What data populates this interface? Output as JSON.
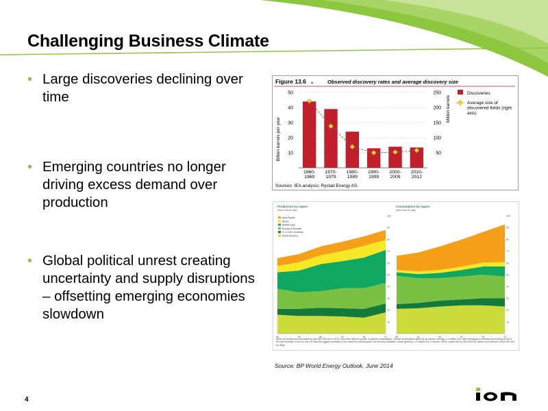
{
  "slide": {
    "title": "Challenging Business Climate",
    "page_number": "4",
    "bullets": [
      "Large discoveries declining over time",
      "Emerging countries no longer driving excess demand over production",
      "Global political unrest creating uncertainty and supply disruptions – offsetting emerging economies slowdown"
    ],
    "source_note": "Source: BP World Energy Outlook, June 2014",
    "logo_text": "ion"
  },
  "colors": {
    "accent_green": "#8dc63f",
    "bar_red": "#c0202b",
    "diamond_yellow": "#f5d018",
    "asia_pacific": "#f6a01a",
    "africa": "#f7e826",
    "middle_east": "#10a860",
    "europe_eurasia": "#7ac143",
    "s_cent_america": "#147a3a",
    "north_america": "#cbdc3a"
  },
  "figure1": {
    "label": "Figure 13.6",
    "title": "Observed discovery rates and average discovery size",
    "ylabel_left": "Billion barrels per year",
    "ylabel_right": "Million barrels",
    "legend": [
      "Discoveries",
      "Average size of discovered fields (right axis)"
    ],
    "sources": "Sources: IEA analysis; Rystad Energy AS."
  },
  "figure2": {
    "production_title": "Production by region",
    "consumption_title": "Consumption by region",
    "units": "Million barrels daily",
    "legend": [
      "Asia Pacific",
      "Africa",
      "Middle East",
      "Europe & Eurasia",
      "S. & Cent. America",
      "North America"
    ],
    "caption": "World oil production increased by just 560,000 b/d in 2013, less than half the growth of global consumption. Global consumption grew by an above average 1.4 million b/d, with emerging economies accounting for all of the net increase. Even so, the US had the biggest increase in the world for consumption, as well as production, which grew by 1.1 million b/d, a record. OPEC output fell by 600,000 b/d, driven by a decline of 520,000 b/d in Libya."
  },
  "chart_data": [
    {
      "type": "bar",
      "title": "Observed discovery rates and average discovery size",
      "categories": [
        "1960-1969",
        "1970-1979",
        "1980-1989",
        "1990-1999",
        "2000-2009",
        "2010-2012"
      ],
      "series": [
        {
          "name": "Discoveries",
          "axis": "left",
          "values": [
            44,
            39,
            24,
            13,
            14,
            13.5
          ]
        },
        {
          "name": "Average size of discovered fields (right axis)",
          "axis": "right",
          "type": "line",
          "values": [
            222,
            138,
            70,
            50,
            52,
            58
          ]
        }
      ],
      "ylabel": "Billion barrels per year",
      "ylabel_right": "Million barrels",
      "ylim": [
        0,
        50
      ],
      "y_ticks": [
        10,
        20,
        30,
        40,
        50
      ],
      "ylim_right": [
        0,
        250
      ],
      "y_ticks_right": [
        50,
        100,
        150,
        200,
        250
      ],
      "legend_position": "right"
    },
    {
      "type": "area",
      "title": "Production by region",
      "ylabel": "Million barrels daily",
      "x_ticks": [
        "88",
        "93",
        "98",
        "03",
        "08",
        "13"
      ],
      "ylim": [
        0,
        100
      ],
      "y_ticks": [
        10,
        20,
        30,
        40,
        50,
        60,
        70,
        80,
        90,
        100
      ],
      "x": [
        1988,
        1993,
        1998,
        2003,
        2008,
        2013
      ],
      "series": [
        {
          "name": "North America",
          "values": [
            16,
            15,
            15,
            14.5,
            13.5,
            18
          ]
        },
        {
          "name": "S. & Cent. America",
          "values": [
            5,
            6,
            7,
            7,
            7.5,
            7.5
          ]
        },
        {
          "name": "Europe & Eurasia",
          "values": [
            17,
            14,
            14,
            17,
            17.5,
            17.5
          ]
        },
        {
          "name": "Middle East",
          "values": [
            14,
            18.5,
            23,
            23,
            26,
            28
          ]
        },
        {
          "name": "Africa",
          "values": [
            5.5,
            7,
            7.5,
            8.5,
            10,
            8.5
          ]
        },
        {
          "name": "Asia Pacific",
          "values": [
            6.5,
            7,
            7.5,
            8,
            8,
            8.5
          ]
        }
      ]
    },
    {
      "type": "area",
      "title": "Consumption by region",
      "ylabel": "Million barrels daily",
      "x_ticks": [
        "88",
        "93",
        "98",
        "03",
        "08",
        "13"
      ],
      "ylim": [
        0,
        100
      ],
      "y_ticks": [
        10,
        20,
        30,
        40,
        50,
        60,
        70,
        80,
        90,
        100
      ],
      "x": [
        1988,
        1993,
        1998,
        2003,
        2008,
        2013
      ],
      "series": [
        {
          "name": "North America",
          "values": [
            21,
            21.5,
            23,
            24,
            24,
            23
          ]
        },
        {
          "name": "S. & Cent. America",
          "values": [
            4,
            4.5,
            5,
            5,
            6,
            7
          ]
        },
        {
          "name": "Europe & Eurasia",
          "values": [
            24,
            21,
            19,
            19.5,
            20,
            18.5
          ]
        },
        {
          "name": "Middle East",
          "values": [
            3,
            3.5,
            4.5,
            5.5,
            7,
            8.5
          ]
        },
        {
          "name": "Africa",
          "values": [
            2,
            2.3,
            2.5,
            2.8,
            3.3,
            3.7
          ]
        },
        {
          "name": "Asia Pacific",
          "values": [
            12,
            16,
            20,
            23,
            26,
            32
          ]
        }
      ]
    }
  ]
}
